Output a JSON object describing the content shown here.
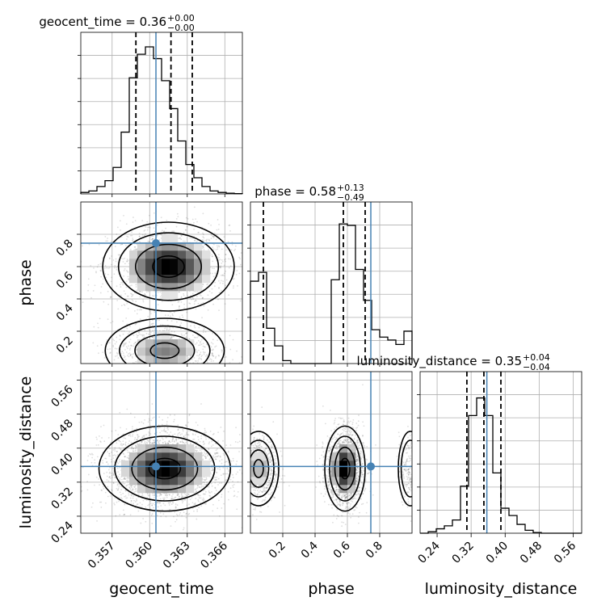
{
  "chart_data": {
    "type": "corner",
    "parameters": [
      {
        "name": "geocent_time",
        "xlabel": "geocent_time",
        "title": "geocent_time = 0.36",
        "title_sup": "+0.00",
        "title_sub": "−0.00",
        "range": [
          0.3545,
          0.3674
        ],
        "ticks": [
          0.357,
          0.36,
          0.363,
          0.366
        ],
        "tick_labels": [
          "0.357",
          "0.360",
          "0.363",
          "0.366"
        ],
        "truth": 0.3605,
        "quantiles": [
          0.3589,
          0.3617,
          0.3634
        ]
      },
      {
        "name": "phase",
        "xlabel": "phase",
        "ylabel": "phase",
        "title": "phase = 0.58",
        "title_sup": "+0.13",
        "title_sub": "−0.49",
        "range": [
          0.0,
          1.0
        ],
        "ticks": [
          0.2,
          0.4,
          0.6,
          0.8
        ],
        "tick_labels": [
          "0.2",
          "0.4",
          "0.6",
          "0.8"
        ],
        "truth": 0.745,
        "quantiles": [
          0.08,
          0.575,
          0.71
        ]
      },
      {
        "name": "luminosity_distance",
        "xlabel": "luminosity_distance",
        "ylabel": "luminosity_distance",
        "title": "luminosity_distance = 0.35",
        "title_sup": "+0.04",
        "title_sub": "−0.04",
        "range": [
          0.2,
          0.58
        ],
        "ticks": [
          0.24,
          0.32,
          0.4,
          0.48,
          0.56
        ],
        "tick_labels": [
          "0.24",
          "0.32",
          "0.40",
          "0.48",
          "0.56"
        ],
        "truth": 0.357,
        "quantiles": [
          0.31,
          0.35,
          0.39
        ]
      }
    ],
    "histograms": [
      {
        "param": "geocent_time",
        "counts": [
          0.01,
          0.02,
          0.05,
          0.09,
          0.18,
          0.42,
          0.79,
          0.95,
          1.0,
          0.92,
          0.77,
          0.58,
          0.36,
          0.2,
          0.11,
          0.05,
          0.02,
          0.01,
          0.005,
          0.002
        ]
      },
      {
        "param": "phase",
        "counts": [
          0.56,
          0.62,
          0.24,
          0.12,
          0.02,
          0.0,
          0.0,
          0.0,
          0.0,
          0.0,
          0.57,
          0.95,
          0.94,
          0.64,
          0.43,
          0.23,
          0.18,
          0.16,
          0.13,
          0.22
        ]
      },
      {
        "param": "luminosity_distance",
        "counts": [
          0.0,
          0.01,
          0.03,
          0.05,
          0.09,
          0.32,
          0.8,
          0.92,
          0.8,
          0.41,
          0.17,
          0.12,
          0.06,
          0.02,
          0.005,
          0.0,
          0.0,
          0.0,
          0.0,
          0.0
        ]
      }
    ],
    "joint_2d": [
      {
        "x": "geocent_time",
        "y": "phase",
        "modes": [
          {
            "cx": 0.3615,
            "cy": 0.6,
            "sx": 0.0021,
            "sy": 0.11,
            "w": 0.6
          },
          {
            "cx": 0.3612,
            "cy": 0.08,
            "sx": 0.0019,
            "sy": 0.08,
            "w": 0.35
          }
        ]
      },
      {
        "x": "geocent_time",
        "y": "luminosity_distance",
        "modes": [
          {
            "cx": 0.3612,
            "cy": 0.352,
            "sx": 0.0021,
            "sy": 0.04,
            "w": 1.0
          }
        ]
      },
      {
        "x": "phase",
        "y": "luminosity_distance",
        "modes": [
          {
            "cx": 0.585,
            "cy": 0.352,
            "sx": 0.05,
            "sy": 0.04,
            "w": 0.65
          },
          {
            "cx": 0.05,
            "cy": 0.352,
            "sx": 0.05,
            "sy": 0.035,
            "w": 0.3
          },
          {
            "cx": 0.99,
            "cy": 0.352,
            "sx": 0.03,
            "sy": 0.035,
            "w": 0.1
          }
        ]
      }
    ],
    "colors": {
      "truth": "#4682b4",
      "hist": "#000000",
      "contour": "#000000",
      "grid": "#b0b0b0"
    },
    "grid": true
  }
}
